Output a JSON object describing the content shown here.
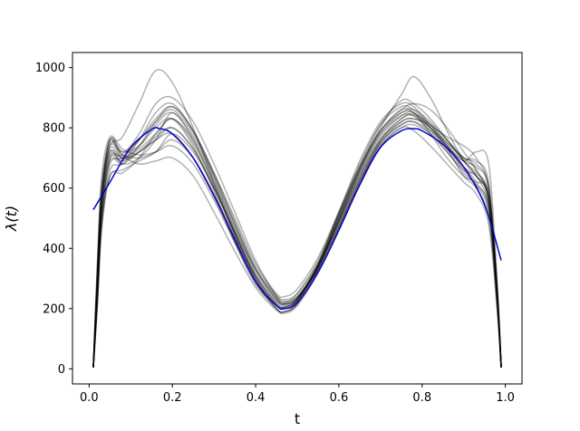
{
  "chart_data": {
    "type": "line",
    "xlabel": "t",
    "ylabel": "λ(t)",
    "xlim": [
      -0.04,
      1.04
    ],
    "ylim": [
      -50,
      1050
    ],
    "xticks": [
      0.0,
      0.2,
      0.4,
      0.6,
      0.8,
      1.0
    ],
    "xtick_labels": [
      "0.0",
      "0.2",
      "0.4",
      "0.6",
      "0.8",
      "1.0"
    ],
    "yticks": [
      0,
      200,
      400,
      600,
      800,
      1000
    ],
    "ytick_labels": [
      "0",
      "200",
      "400",
      "600",
      "800",
      "1000"
    ],
    "grid": false,
    "legend": "none",
    "colors": {
      "true_curve": "#0000cc",
      "sample_curves": "#000000"
    },
    "true_curve": {
      "x": [
        0.01,
        0.05,
        0.1,
        0.15,
        0.17,
        0.2,
        0.25,
        0.3,
        0.35,
        0.4,
        0.45,
        0.47,
        0.5,
        0.55,
        0.6,
        0.65,
        0.7,
        0.75,
        0.78,
        0.8,
        0.85,
        0.9,
        0.95,
        0.99
      ],
      "values": [
        528,
        620,
        735,
        795,
        797,
        780,
        700,
        575,
        430,
        290,
        210,
        200,
        220,
        320,
        460,
        610,
        735,
        790,
        797,
        790,
        745,
        670,
        545,
        360
      ]
    },
    "sample_curves_x": [
      0.01,
      0.02,
      0.03,
      0.05,
      0.08,
      0.12,
      0.16,
      0.2,
      0.25,
      0.3,
      0.35,
      0.4,
      0.45,
      0.47,
      0.5,
      0.55,
      0.6,
      0.65,
      0.7,
      0.75,
      0.78,
      0.82,
      0.86,
      0.9,
      0.93,
      0.96,
      0.98,
      0.99
    ],
    "sample_curves": [
      [
        5,
        260,
        520,
        700,
        710,
        780,
        880,
        900,
        820,
        680,
        520,
        360,
        240,
        220,
        250,
        360,
        510,
        660,
        780,
        850,
        860,
        820,
        760,
        700,
        660,
        560,
        250,
        5
      ],
      [
        5,
        320,
        560,
        720,
        680,
        700,
        760,
        850,
        760,
        610,
        440,
        290,
        200,
        190,
        215,
        330,
        490,
        640,
        760,
        830,
        845,
        810,
        740,
        660,
        610,
        520,
        230,
        5
      ],
      [
        5,
        280,
        540,
        760,
        720,
        740,
        800,
        830,
        740,
        590,
        420,
        280,
        210,
        205,
        230,
        340,
        500,
        650,
        770,
        840,
        850,
        800,
        730,
        640,
        600,
        500,
        210,
        5
      ],
      [
        5,
        350,
        600,
        740,
        770,
        880,
        990,
        950,
        800,
        620,
        450,
        300,
        200,
        190,
        220,
        340,
        510,
        670,
        810,
        890,
        880,
        830,
        760,
        690,
        640,
        540,
        240,
        5
      ],
      [
        5,
        220,
        480,
        640,
        660,
        690,
        720,
        780,
        720,
        600,
        460,
        330,
        240,
        225,
        240,
        330,
        470,
        620,
        750,
        810,
        820,
        780,
        720,
        660,
        640,
        560,
        260,
        5
      ],
      [
        5,
        300,
        580,
        760,
        700,
        720,
        760,
        800,
        730,
        600,
        450,
        310,
        225,
        215,
        235,
        350,
        520,
        690,
        820,
        880,
        870,
        810,
        750,
        700,
        690,
        620,
        280,
        5
      ],
      [
        5,
        240,
        500,
        680,
        700,
        760,
        820,
        860,
        780,
        640,
        480,
        330,
        235,
        220,
        240,
        340,
        480,
        630,
        760,
        830,
        840,
        800,
        740,
        690,
        670,
        600,
        270,
        5
      ],
      [
        5,
        330,
        600,
        760,
        710,
        680,
        690,
        700,
        640,
        520,
        390,
        270,
        195,
        185,
        210,
        320,
        470,
        620,
        740,
        800,
        810,
        780,
        720,
        650,
        610,
        540,
        250,
        5
      ],
      [
        5,
        260,
        520,
        700,
        690,
        760,
        850,
        880,
        790,
        650,
        500,
        350,
        250,
        240,
        265,
        370,
        520,
        670,
        790,
        850,
        850,
        800,
        740,
        690,
        720,
        680,
        300,
        5
      ],
      [
        5,
        360,
        640,
        770,
        730,
        710,
        720,
        740,
        680,
        560,
        420,
        290,
        210,
        200,
        225,
        340,
        500,
        660,
        790,
        860,
        850,
        780,
        700,
        640,
        620,
        580,
        260,
        5
      ],
      [
        5,
        210,
        460,
        640,
        650,
        700,
        780,
        830,
        760,
        620,
        470,
        320,
        230,
        215,
        235,
        330,
        470,
        610,
        740,
        800,
        790,
        740,
        680,
        620,
        580,
        480,
        200,
        5
      ],
      [
        5,
        300,
        560,
        720,
        700,
        740,
        810,
        850,
        770,
        630,
        460,
        310,
        215,
        205,
        230,
        350,
        520,
        680,
        810,
        870,
        860,
        810,
        770,
        740,
        700,
        600,
        260,
        5
      ],
      [
        5,
        270,
        530,
        710,
        690,
        720,
        760,
        780,
        700,
        570,
        420,
        285,
        200,
        190,
        215,
        330,
        490,
        650,
        780,
        840,
        840,
        790,
        730,
        670,
        640,
        570,
        250,
        5
      ],
      [
        5,
        320,
        590,
        750,
        720,
        760,
        830,
        870,
        790,
        640,
        480,
        330,
        230,
        215,
        235,
        340,
        480,
        620,
        750,
        810,
        820,
        790,
        740,
        670,
        620,
        530,
        230,
        5
      ],
      [
        5,
        250,
        500,
        690,
        680,
        720,
        770,
        800,
        730,
        600,
        450,
        310,
        220,
        210,
        230,
        340,
        500,
        660,
        800,
        910,
        970,
        900,
        790,
        690,
        640,
        560,
        240,
        5
      ],
      [
        5,
        290,
        550,
        730,
        700,
        730,
        780,
        830,
        750,
        610,
        450,
        300,
        210,
        200,
        225,
        345,
        510,
        670,
        790,
        860,
        880,
        860,
        800,
        720,
        660,
        560,
        240,
        5
      ],
      [
        5,
        230,
        480,
        660,
        680,
        740,
        820,
        870,
        790,
        650,
        490,
        340,
        245,
        230,
        250,
        350,
        490,
        630,
        750,
        820,
        830,
        800,
        750,
        700,
        680,
        600,
        270,
        5
      ],
      [
        5,
        310,
        570,
        740,
        710,
        700,
        720,
        760,
        700,
        580,
        440,
        300,
        215,
        205,
        230,
        340,
        490,
        640,
        760,
        820,
        830,
        810,
        760,
        690,
        650,
        580,
        260,
        5
      ]
    ]
  }
}
